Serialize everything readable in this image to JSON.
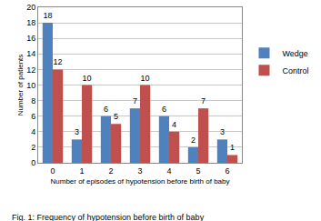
{
  "chart_data": {
    "type": "bar",
    "x_label": "Number of episodes of hypotension before birth of baby",
    "y_label": "Number of patients",
    "annotations": [
      "Fig. 1: Frequency of hypotension before birth of baby"
    ],
    "categories": [
      "0",
      "1",
      "2",
      "3",
      "4",
      "5",
      "6"
    ],
    "series": [
      {
        "name": "Wedge",
        "color": "#4f81bd",
        "values": [
          18,
          3,
          6,
          7,
          6,
          2,
          3
        ]
      },
      {
        "name": "Control",
        "color": "#c0504d",
        "values": [
          12,
          10,
          5,
          10,
          4,
          7,
          1
        ]
      }
    ],
    "ylim": [
      0,
      20
    ],
    "yticks": [
      0,
      2,
      4,
      6,
      8,
      10,
      12,
      14,
      16,
      18,
      20
    ],
    "grid": true,
    "data_labels": true,
    "legend": "right"
  }
}
